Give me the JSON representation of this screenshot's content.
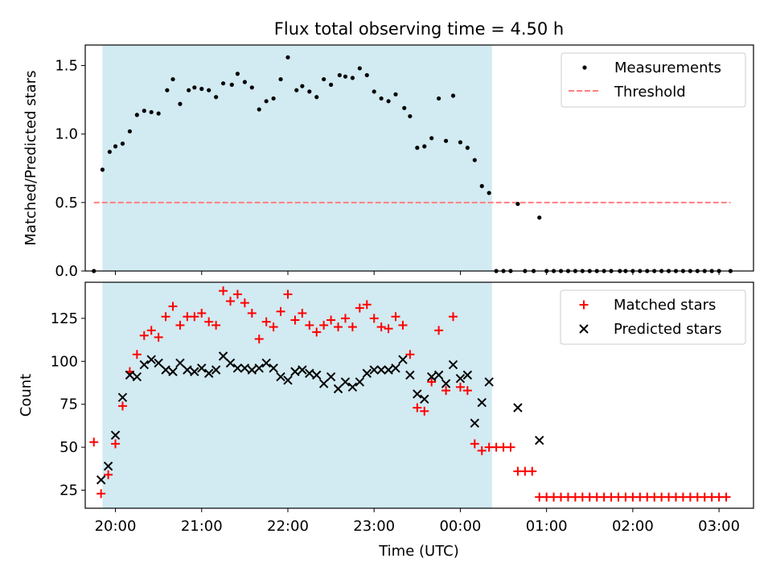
{
  "title": "Flux total observing time = 4.50 h",
  "colors": {
    "shade": "#add8e6",
    "measurement": "#000000",
    "threshold": "#ff7f7f",
    "matched": "#ff0000",
    "predicted": "#000000"
  },
  "xaxis": {
    "label": "Time (UTC)",
    "range": [
      "19:39",
      "03:24"
    ],
    "ticks": [
      "20:00",
      "21:00",
      "22:00",
      "23:00",
      "00:00",
      "01:00",
      "02:00",
      "03:00"
    ]
  },
  "shaded_interval": [
    "19:51",
    "00:22"
  ],
  "chart_data": [
    {
      "type": "scatter",
      "name": "top",
      "ylabel": "Matched/Predicted stars",
      "ylim": [
        0,
        1.65
      ],
      "yticks": [
        "0.0",
        "0.5",
        "1.0",
        "1.5"
      ],
      "legend_position": "top-right",
      "threshold": {
        "name": "Threshold",
        "value": 0.5,
        "x_range": [
          "19:45",
          "03:08"
        ]
      },
      "series": [
        {
          "name": "Measurements",
          "points": [
            [
              "19:45",
              0.0
            ],
            [
              "19:51",
              0.74
            ],
            [
              "19:56",
              0.87
            ],
            [
              "20:00",
              0.91
            ],
            [
              "20:05",
              0.93
            ],
            [
              "20:10",
              1.02
            ],
            [
              "20:15",
              1.14
            ],
            [
              "20:20",
              1.17
            ],
            [
              "20:25",
              1.16
            ],
            [
              "20:30",
              1.15
            ],
            [
              "20:36",
              1.32
            ],
            [
              "20:40",
              1.4
            ],
            [
              "20:45",
              1.22
            ],
            [
              "20:51",
              1.32
            ],
            [
              "20:55",
              1.34
            ],
            [
              "21:00",
              1.33
            ],
            [
              "21:05",
              1.32
            ],
            [
              "21:10",
              1.27
            ],
            [
              "21:15",
              1.37
            ],
            [
              "21:21",
              1.36
            ],
            [
              "21:25",
              1.44
            ],
            [
              "21:30",
              1.38
            ],
            [
              "21:35",
              1.34
            ],
            [
              "21:40",
              1.18
            ],
            [
              "21:45",
              1.24
            ],
            [
              "21:50",
              1.26
            ],
            [
              "21:55",
              1.4
            ],
            [
              "22:00",
              1.56
            ],
            [
              "22:06",
              1.32
            ],
            [
              "22:10",
              1.35
            ],
            [
              "22:15",
              1.31
            ],
            [
              "22:20",
              1.27
            ],
            [
              "22:25",
              1.4
            ],
            [
              "22:30",
              1.36
            ],
            [
              "22:36",
              1.43
            ],
            [
              "22:40",
              1.42
            ],
            [
              "22:45",
              1.41
            ],
            [
              "22:50",
              1.48
            ],
            [
              "22:55",
              1.43
            ],
            [
              "23:00",
              1.31
            ],
            [
              "23:05",
              1.26
            ],
            [
              "23:10",
              1.24
            ],
            [
              "23:15",
              1.29
            ],
            [
              "23:21",
              1.19
            ],
            [
              "23:25",
              1.13
            ],
            [
              "23:30",
              0.9
            ],
            [
              "23:35",
              0.91
            ],
            [
              "23:40",
              0.97
            ],
            [
              "23:45",
              1.26
            ],
            [
              "23:50",
              0.95
            ],
            [
              "23:55",
              1.28
            ],
            [
              "00:00",
              0.94
            ],
            [
              "00:05",
              0.9
            ],
            [
              "00:10",
              0.81
            ],
            [
              "00:15",
              0.62
            ],
            [
              "00:20",
              0.57
            ],
            [
              "00:25",
              0.0
            ],
            [
              "00:30",
              0.0
            ],
            [
              "00:35",
              0.0
            ],
            [
              "00:40",
              0.49
            ],
            [
              "00:45",
              0.0
            ],
            [
              "00:51",
              0.0
            ],
            [
              "00:55",
              0.39
            ],
            [
              "01:00",
              0.0
            ],
            [
              "01:05",
              0.0
            ],
            [
              "01:10",
              0.0
            ],
            [
              "01:15",
              0.0
            ],
            [
              "01:20",
              0.0
            ],
            [
              "01:25",
              0.0
            ],
            [
              "01:30",
              0.0
            ],
            [
              "01:35",
              0.0
            ],
            [
              "01:40",
              0.0
            ],
            [
              "01:45",
              0.0
            ],
            [
              "01:51",
              0.0
            ],
            [
              "01:55",
              0.0
            ],
            [
              "02:00",
              0.0
            ],
            [
              "02:05",
              0.0
            ],
            [
              "02:10",
              0.0
            ],
            [
              "02:15",
              0.0
            ],
            [
              "02:20",
              0.0
            ],
            [
              "02:25",
              0.0
            ],
            [
              "02:30",
              0.0
            ],
            [
              "02:35",
              0.0
            ],
            [
              "02:40",
              0.0
            ],
            [
              "02:45",
              0.0
            ],
            [
              "02:50",
              0.0
            ],
            [
              "02:55",
              0.0
            ],
            [
              "03:00",
              0.0
            ],
            [
              "03:08",
              0.0
            ]
          ]
        }
      ]
    },
    {
      "type": "scatter",
      "name": "bottom",
      "ylabel": "Count",
      "ylim": [
        14.5,
        146
      ],
      "yticks": [
        "25",
        "50",
        "75",
        "100",
        "125"
      ],
      "legend_position": "top-right",
      "series": [
        {
          "name": "Matched stars",
          "marker": "plus",
          "points": [
            [
              "19:45",
              53
            ],
            [
              "19:50",
              23
            ],
            [
              "19:55",
              34
            ],
            [
              "20:00",
              52
            ],
            [
              "20:05",
              74
            ],
            [
              "20:10",
              94
            ],
            [
              "20:15",
              104
            ],
            [
              "20:20",
              115
            ],
            [
              "20:25",
              118
            ],
            [
              "20:30",
              114
            ],
            [
              "20:35",
              126
            ],
            [
              "20:40",
              132
            ],
            [
              "20:45",
              121
            ],
            [
              "20:50",
              126
            ],
            [
              "20:55",
              126
            ],
            [
              "21:00",
              128
            ],
            [
              "21:05",
              123
            ],
            [
              "21:10",
              121
            ],
            [
              "21:15",
              141
            ],
            [
              "21:20",
              135
            ],
            [
              "21:25",
              139
            ],
            [
              "21:30",
              134
            ],
            [
              "21:35",
              128
            ],
            [
              "21:40",
              113
            ],
            [
              "21:45",
              123
            ],
            [
              "21:50",
              120
            ],
            [
              "21:55",
              129
            ],
            [
              "22:00",
              139
            ],
            [
              "22:05",
              124
            ],
            [
              "22:10",
              128
            ],
            [
              "22:15",
              121
            ],
            [
              "22:20",
              117
            ],
            [
              "22:25",
              121
            ],
            [
              "22:30",
              124
            ],
            [
              "22:35",
              120
            ],
            [
              "22:40",
              125
            ],
            [
              "22:45",
              120
            ],
            [
              "22:50",
              131
            ],
            [
              "22:55",
              133
            ],
            [
              "23:00",
              125
            ],
            [
              "23:05",
              120
            ],
            [
              "23:10",
              119
            ],
            [
              "23:15",
              126
            ],
            [
              "23:20",
              121
            ],
            [
              "23:25",
              104
            ],
            [
              "23:30",
              73
            ],
            [
              "23:35",
              71
            ],
            [
              "23:40",
              88
            ],
            [
              "23:45",
              118
            ],
            [
              "23:50",
              83
            ],
            [
              "23:55",
              126
            ],
            [
              "00:00",
              85
            ],
            [
              "00:05",
              83
            ],
            [
              "00:10",
              52
            ],
            [
              "00:15",
              48
            ],
            [
              "00:20",
              50
            ],
            [
              "00:25",
              50
            ],
            [
              "00:30",
              50
            ],
            [
              "00:35",
              50
            ],
            [
              "00:40",
              36
            ],
            [
              "00:45",
              36
            ],
            [
              "00:50",
              36
            ],
            [
              "00:55",
              21
            ],
            [
              "01:00",
              21
            ],
            [
              "01:05",
              21
            ],
            [
              "01:10",
              21
            ],
            [
              "01:15",
              21
            ],
            [
              "01:20",
              21
            ],
            [
              "01:25",
              21
            ],
            [
              "01:30",
              21
            ],
            [
              "01:35",
              21
            ],
            [
              "01:40",
              21
            ],
            [
              "01:45",
              21
            ],
            [
              "01:50",
              21
            ],
            [
              "01:55",
              21
            ],
            [
              "02:00",
              21
            ],
            [
              "02:05",
              21
            ],
            [
              "02:10",
              21
            ],
            [
              "02:15",
              21
            ],
            [
              "02:20",
              21
            ],
            [
              "02:25",
              21
            ],
            [
              "02:30",
              21
            ],
            [
              "02:35",
              21
            ],
            [
              "02:40",
              21
            ],
            [
              "02:45",
              21
            ],
            [
              "02:50",
              21
            ],
            [
              "02:55",
              21
            ],
            [
              "03:00",
              21
            ],
            [
              "03:05",
              21
            ]
          ]
        },
        {
          "name": "Predicted stars",
          "marker": "x",
          "points": [
            [
              "19:50",
              31
            ],
            [
              "19:55",
              39
            ],
            [
              "20:00",
              57
            ],
            [
              "20:05",
              79
            ],
            [
              "20:10",
              92
            ],
            [
              "20:15",
              91
            ],
            [
              "20:20",
              98
            ],
            [
              "20:25",
              101
            ],
            [
              "20:30",
              99
            ],
            [
              "20:35",
              95
            ],
            [
              "20:40",
              94
            ],
            [
              "20:45",
              99
            ],
            [
              "20:50",
              95
            ],
            [
              "20:55",
              94
            ],
            [
              "21:00",
              96
            ],
            [
              "21:05",
              93
            ],
            [
              "21:10",
              95
            ],
            [
              "21:15",
              103
            ],
            [
              "21:20",
              99
            ],
            [
              "21:25",
              96
            ],
            [
              "21:30",
              96
            ],
            [
              "21:35",
              95
            ],
            [
              "21:40",
              96
            ],
            [
              "21:45",
              99
            ],
            [
              "21:50",
              96
            ],
            [
              "21:55",
              91
            ],
            [
              "22:00",
              89
            ],
            [
              "22:05",
              94
            ],
            [
              "22:10",
              95
            ],
            [
              "22:15",
              93
            ],
            [
              "22:20",
              92
            ],
            [
              "22:25",
              87
            ],
            [
              "22:30",
              91
            ],
            [
              "22:35",
              84
            ],
            [
              "22:40",
              88
            ],
            [
              "22:45",
              85
            ],
            [
              "22:50",
              88
            ],
            [
              "22:55",
              93
            ],
            [
              "23:00",
              95
            ],
            [
              "23:05",
              95
            ],
            [
              "23:10",
              95
            ],
            [
              "23:15",
              96
            ],
            [
              "23:20",
              101
            ],
            [
              "23:25",
              92
            ],
            [
              "23:30",
              81
            ],
            [
              "23:35",
              78
            ],
            [
              "23:40",
              91
            ],
            [
              "23:45",
              92
            ],
            [
              "23:50",
              87
            ],
            [
              "23:55",
              98
            ],
            [
              "00:00",
              90
            ],
            [
              "00:05",
              92
            ],
            [
              "00:10",
              64
            ],
            [
              "00:15",
              76
            ],
            [
              "00:20",
              88
            ],
            [
              "00:40",
              73
            ],
            [
              "00:55",
              54
            ]
          ]
        }
      ]
    }
  ]
}
